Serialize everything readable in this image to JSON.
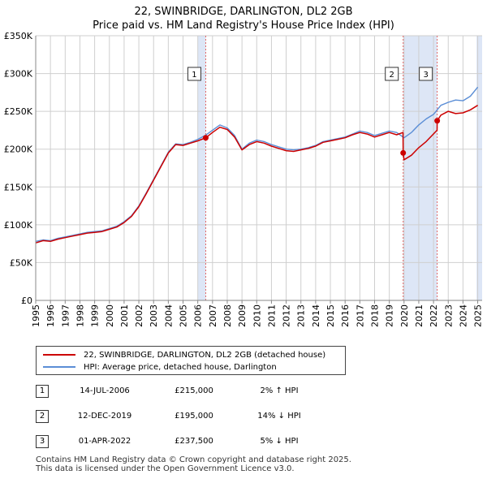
{
  "title": {
    "line1": "22, SWINBRIDGE, DARLINGTON, DL2 2GB",
    "line2": "Price paid vs. HM Land Registry's House Price Index (HPI)"
  },
  "legend": {
    "property": "22, SWINBRIDGE, DARLINGTON, DL2 2GB (detached house)",
    "hpi": "HPI: Average price, detached house, Darlington"
  },
  "colors": {
    "property": "#cc0000",
    "hpi": "#5b8ed6",
    "shade": "#dde6f6",
    "grid": "#cfcfcf"
  },
  "sales": [
    {
      "num": "1",
      "date": "14-JUL-2006",
      "price": "£215,000",
      "hpi": "2% ↑ HPI"
    },
    {
      "num": "2",
      "date": "12-DEC-2019",
      "price": "£195,000",
      "hpi": "14% ↓ HPI"
    },
    {
      "num": "3",
      "date": "01-APR-2022",
      "price": "£237,500",
      "hpi": "5% ↓ HPI"
    }
  ],
  "footer": {
    "line1": "Contains HM Land Registry data © Crown copyright and database right 2025.",
    "line2": "This data is licensed under the Open Government Licence v3.0."
  },
  "chart_data": {
    "type": "line",
    "xlim": [
      1995,
      2025.3
    ],
    "ylim": [
      0,
      350000
    ],
    "ytick_values": [
      0,
      50000,
      100000,
      150000,
      200000,
      250000,
      300000,
      350000
    ],
    "ytick_labels": [
      "£0",
      "£50K",
      "£100K",
      "£150K",
      "£200K",
      "£250K",
      "£300K",
      "£350K"
    ],
    "xtick_labels": [
      "1995",
      "1996",
      "1997",
      "1998",
      "1999",
      "2000",
      "2001",
      "2002",
      "2003",
      "2004",
      "2005",
      "2006",
      "2007",
      "2008",
      "2009",
      "2010",
      "2011",
      "2012",
      "2013",
      "2014",
      "2015",
      "2016",
      "2017",
      "2018",
      "2019",
      "2020",
      "2021",
      "2022",
      "2023",
      "2024",
      "2025"
    ],
    "shaded_ranges": [
      [
        2006.0,
        2006.54
      ],
      [
        2019.94,
        2022.25
      ],
      [
        2024.92,
        2025.3
      ]
    ],
    "series": [
      {
        "name": "HPI: Average price, detached house, Darlington",
        "x": [
          1995,
          1995.5,
          1996,
          1996.5,
          1997,
          1997.5,
          1998,
          1998.5,
          1999,
          1999.5,
          2000,
          2000.5,
          2001,
          2001.5,
          2002,
          2002.5,
          2003,
          2003.5,
          2004,
          2004.5,
          2005,
          2005.5,
          2006,
          2006.5,
          2007,
          2007.5,
          2008,
          2008.5,
          2009,
          2009.5,
          2010,
          2010.5,
          2011,
          2011.5,
          2012,
          2012.5,
          2013,
          2013.5,
          2014,
          2014.5,
          2015,
          2015.5,
          2016,
          2016.5,
          2017,
          2017.5,
          2018,
          2018.5,
          2019,
          2019.5,
          2020,
          2020.5,
          2021,
          2021.5,
          2022,
          2022.5,
          2023,
          2023.5,
          2024,
          2024.5,
          2025
        ],
        "values": [
          78000,
          80000,
          79000,
          82000,
          84000,
          86000,
          88000,
          90000,
          91000,
          92000,
          95000,
          98000,
          104000,
          112000,
          125000,
          142000,
          160000,
          178000,
          196000,
          207000,
          206000,
          209000,
          213000,
          218000,
          225000,
          232000,
          228000,
          218000,
          200000,
          208000,
          212000,
          210000,
          206000,
          203000,
          200000,
          199000,
          200000,
          202000,
          205000,
          210000,
          212000,
          214000,
          216000,
          220000,
          224000,
          222000,
          218000,
          221000,
          224000,
          222000,
          215000,
          222000,
          232000,
          240000,
          246000,
          258000,
          262000,
          265000,
          264000,
          270000,
          282000
        ]
      },
      {
        "name": "22, SWINBRIDGE, DARLINGTON, DL2 2GB (detached house)",
        "x": [
          1995,
          1995.5,
          1996,
          1996.5,
          1997,
          1997.5,
          1998,
          1998.5,
          1999,
          1999.5,
          2000,
          2000.5,
          2001,
          2001.5,
          2002,
          2002.5,
          2003,
          2003.5,
          2004,
          2004.5,
          2005,
          2005.5,
          2006,
          2006.54,
          2007,
          2007.5,
          2008,
          2008.5,
          2009,
          2009.5,
          2010,
          2010.5,
          2011,
          2011.5,
          2012,
          2012.5,
          2013,
          2013.5,
          2014,
          2014.5,
          2015,
          2015.5,
          2016,
          2016.5,
          2017,
          2017.5,
          2018,
          2018.5,
          2019,
          2019.5,
          2019.93,
          2019.94,
          2020,
          2020.5,
          2021,
          2021.5,
          2022.24,
          2022.25,
          2022.5,
          2023,
          2023.5,
          2024,
          2024.5,
          2025
        ],
        "values": [
          76000,
          79000,
          78000,
          81000,
          83000,
          85000,
          87000,
          89000,
          90000,
          91000,
          94000,
          97000,
          103000,
          111000,
          124000,
          141000,
          159000,
          177000,
          195000,
          206000,
          205000,
          208000,
          211000,
          215000,
          222000,
          229000,
          226000,
          216000,
          199000,
          206000,
          210000,
          208000,
          204000,
          201000,
          198000,
          197000,
          199000,
          201000,
          204000,
          209000,
          211000,
          213000,
          215000,
          219000,
          222000,
          220000,
          216000,
          219000,
          222000,
          219000,
          222000,
          195000,
          186000,
          192000,
          202000,
          210000,
          225000,
          237500,
          245000,
          250000,
          247000,
          248000,
          252000,
          258000
        ]
      }
    ],
    "sale_points": [
      {
        "x": 2006.54,
        "y": 215000,
        "label": "1"
      },
      {
        "x": 2019.94,
        "y": 195000,
        "label": "2"
      },
      {
        "x": 2022.25,
        "y": 237500,
        "label": "3"
      }
    ]
  }
}
